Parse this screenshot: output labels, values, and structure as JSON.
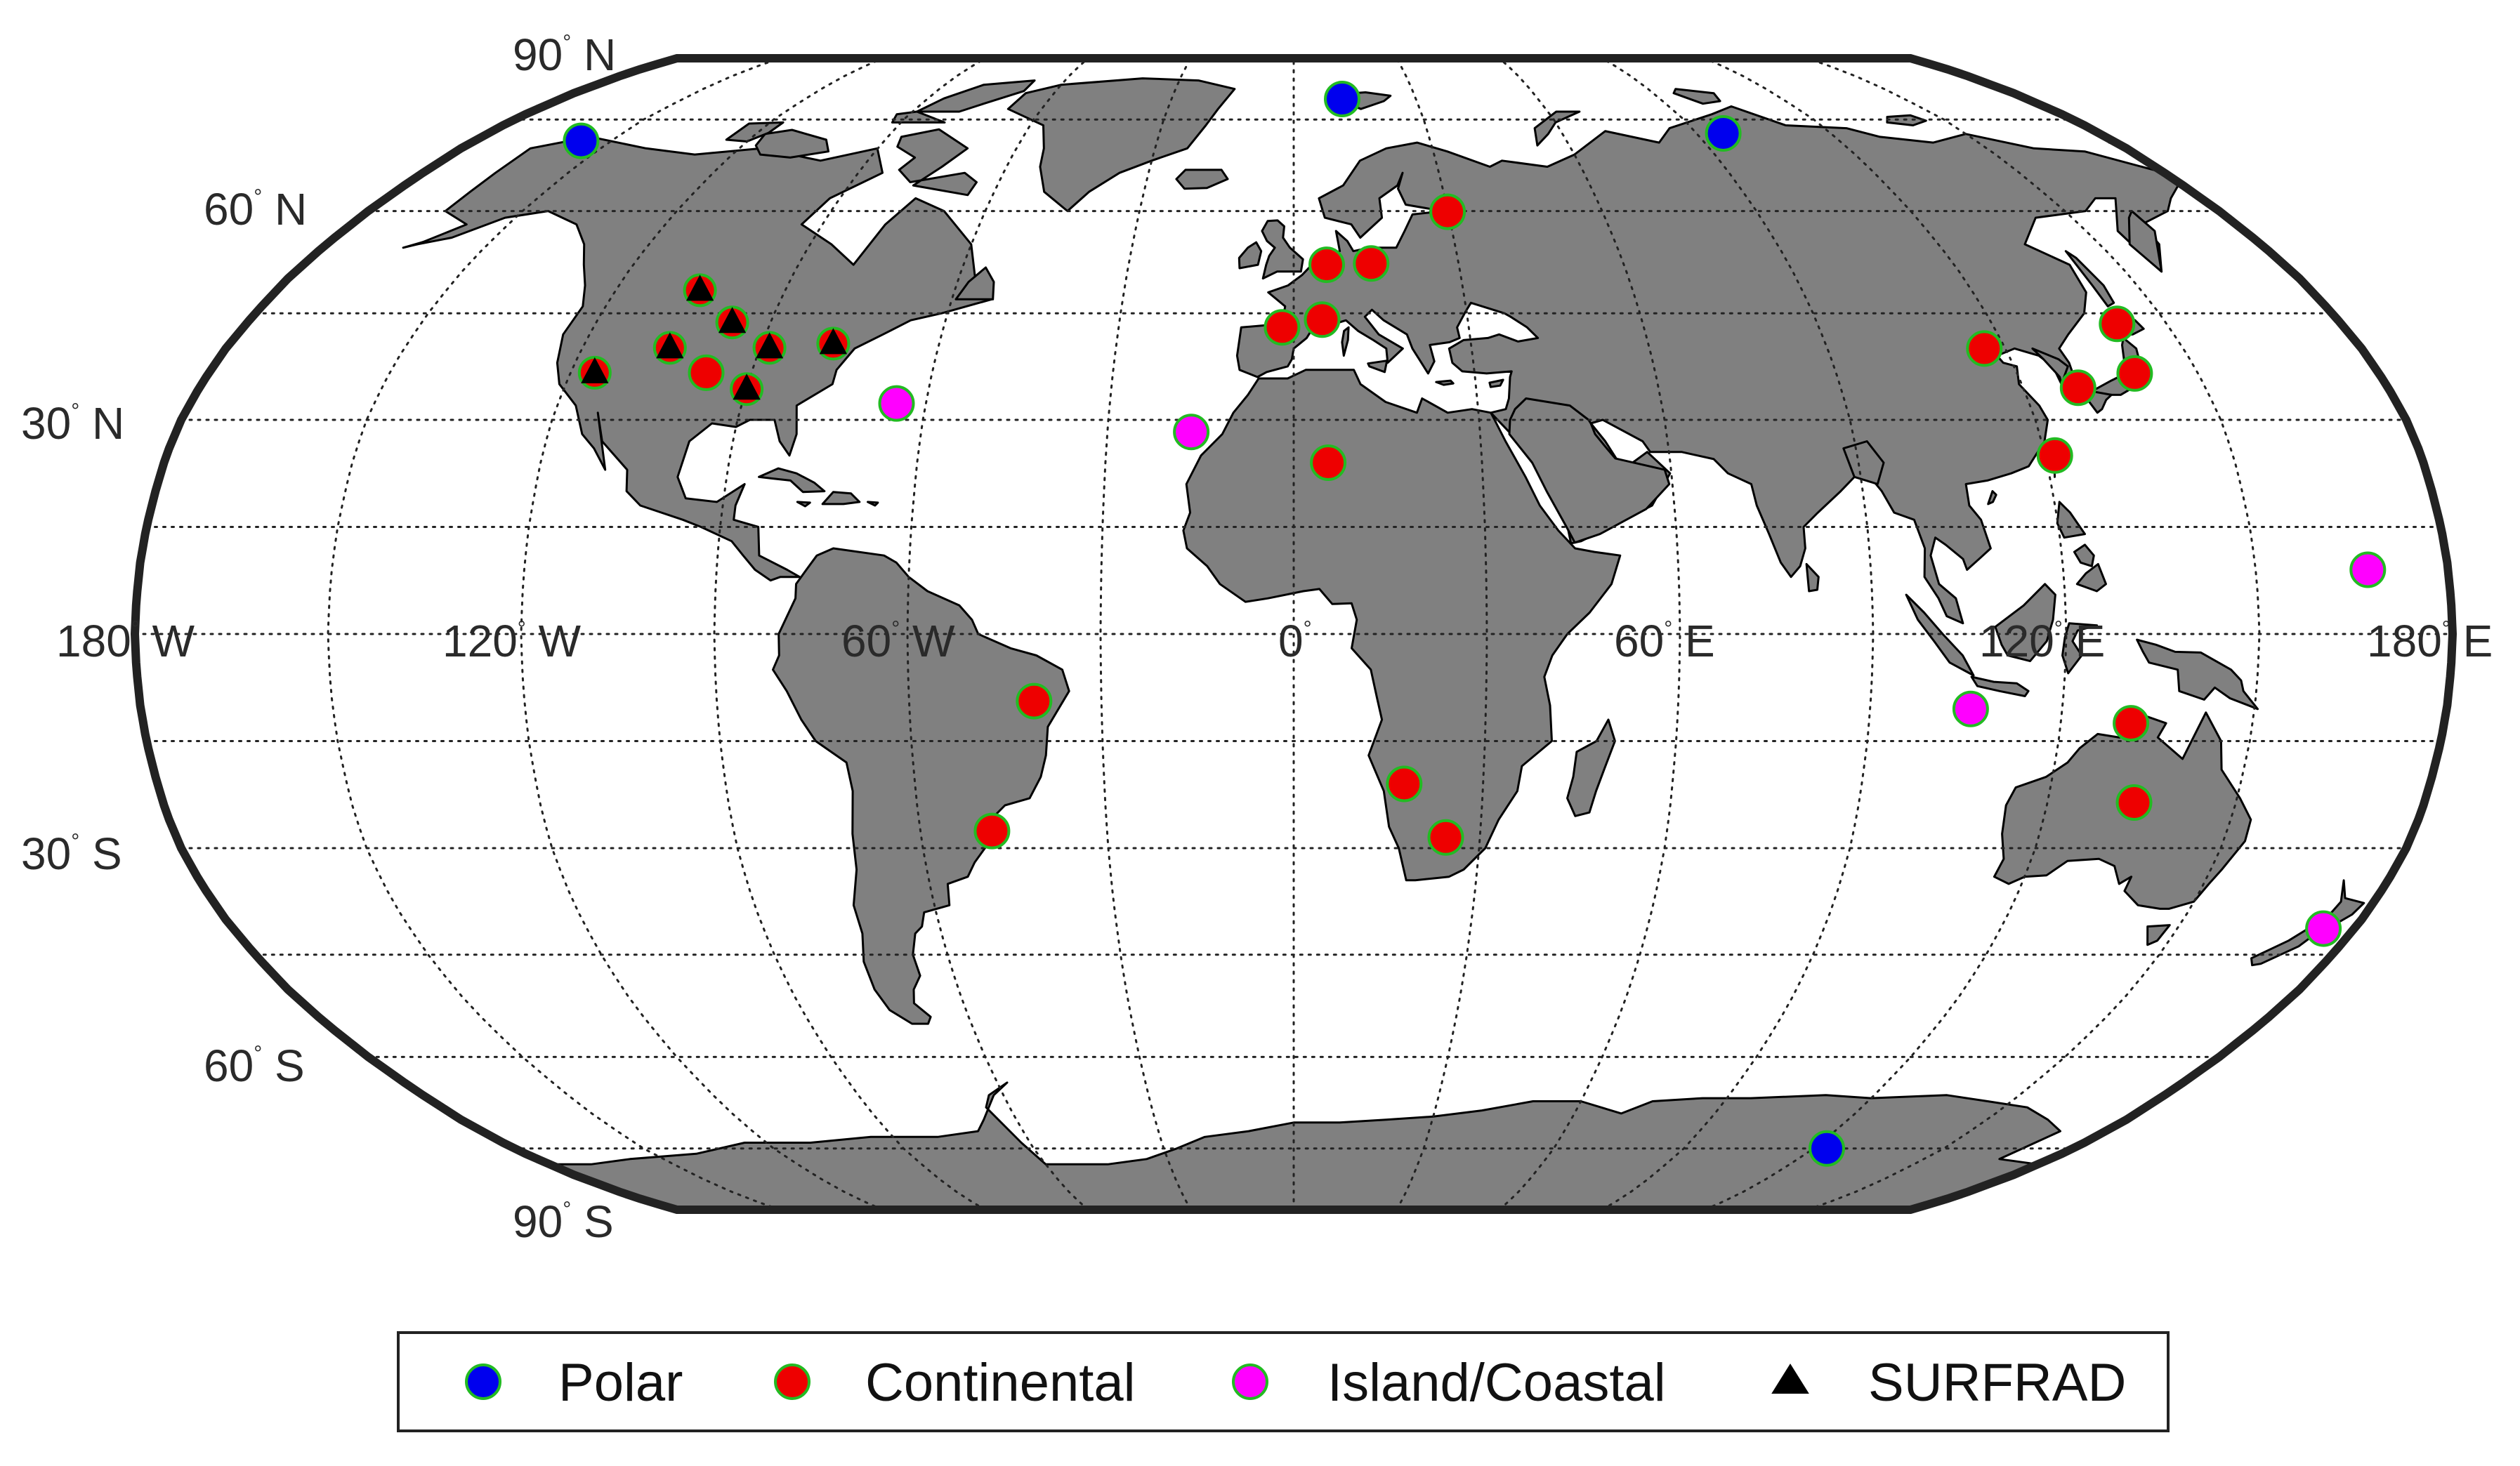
{
  "figure": {
    "type": "world map of measurement stations",
    "projection": "Robinson-like (pseudocylindrical)"
  },
  "map": {
    "land_color": "#808080",
    "ocean_color": "#ffffff",
    "frame_color": "#222222",
    "latitude_labels": [
      {
        "lat": 90,
        "deg": "90",
        "hem": "N"
      },
      {
        "lat": 60,
        "deg": "60",
        "hem": "N"
      },
      {
        "lat": 30,
        "deg": "30",
        "hem": "N"
      },
      {
        "lat": -30,
        "deg": "30",
        "hem": "S"
      },
      {
        "lat": -60,
        "deg": "60",
        "hem": "S"
      },
      {
        "lat": -90,
        "deg": "90",
        "hem": "S"
      }
    ],
    "longitude_labels": [
      {
        "lon": -180,
        "deg": "180",
        "hem": "W"
      },
      {
        "lon": -120,
        "deg": "120",
        "hem": "W"
      },
      {
        "lon": -60,
        "deg": "60",
        "hem": "W"
      },
      {
        "lon": 0,
        "deg": "0",
        "hem": ""
      },
      {
        "lon": 60,
        "deg": "60",
        "hem": "E"
      },
      {
        "lon": 120,
        "deg": "120",
        "hem": "E"
      },
      {
        "lon": 180,
        "deg": "180",
        "hem": "E"
      }
    ],
    "degree_symbol": "°"
  },
  "stations": {
    "Polar": [
      {
        "lat": 71.3,
        "lon": -156.6
      },
      {
        "lat": 78.9,
        "lon": 11.9
      },
      {
        "lat": 72.6,
        "lon": 96.0
      },
      {
        "lat": -75.0,
        "lon": 123.0
      }
    ],
    "Continental": [
      {
        "lat": 36.6,
        "lon": -97.5
      },
      {
        "lat": 52.2,
        "lon": 14.1
      },
      {
        "lat": 59.9,
        "lon": 29.9
      },
      {
        "lat": 52.0,
        "lon": 6.0
      },
      {
        "lat": 44.1,
        "lon": 4.9
      },
      {
        "lat": 43.0,
        "lon": -2.0
      },
      {
        "lat": 24.0,
        "lon": 5.5
      },
      {
        "lat": -21.0,
        "lon": 17.5
      },
      {
        "lat": -28.5,
        "lon": 24.5
      },
      {
        "lat": -9.4,
        "lon": -40.5
      },
      {
        "lat": -27.6,
        "lon": -48.5
      },
      {
        "lat": 40.0,
        "lon": 116.4
      },
      {
        "lat": 43.5,
        "lon": 141.5
      },
      {
        "lat": 36.5,
        "lon": 139.5
      },
      {
        "lat": 34.5,
        "lon": 129.0
      },
      {
        "lat": 25.0,
        "lon": 121.5
      },
      {
        "lat": -12.5,
        "lon": 131.0
      },
      {
        "lat": -23.6,
        "lon": 133.8
      }
    ],
    "Island/Coastal": [
      {
        "lat": 32.3,
        "lon": -64.8
      },
      {
        "lat": 28.3,
        "lon": -16.5
      },
      {
        "lat": 9.0,
        "lon": 167.5
      },
      {
        "lat": -10.5,
        "lon": 105.7
      },
      {
        "lat": -41.3,
        "lon": 174.8
      }
    ],
    "SURFRAD": [
      {
        "lat": 48.3,
        "lon": -105.1
      },
      {
        "lat": 43.7,
        "lon": -96.6
      },
      {
        "lat": 40.1,
        "lon": -88.4
      },
      {
        "lat": 40.7,
        "lon": -77.9
      },
      {
        "lat": 40.1,
        "lon": -105.2
      },
      {
        "lat": 36.6,
        "lon": -116.0
      },
      {
        "lat": 34.3,
        "lon": -89.9
      }
    ]
  },
  "legend": {
    "items": [
      {
        "label": "Polar",
        "marker": "circle",
        "fill": "#0000ee",
        "stroke": "#22bb22"
      },
      {
        "label": "Continental",
        "marker": "circle",
        "fill": "#ee0000",
        "stroke": "#22bb22"
      },
      {
        "label": "Island/Coastal",
        "marker": "circle",
        "fill": "#ff00ff",
        "stroke": "#22bb22"
      },
      {
        "label": "SURFRAD",
        "marker": "triangle",
        "fill": "#000000",
        "stroke": "#000000"
      }
    ]
  }
}
